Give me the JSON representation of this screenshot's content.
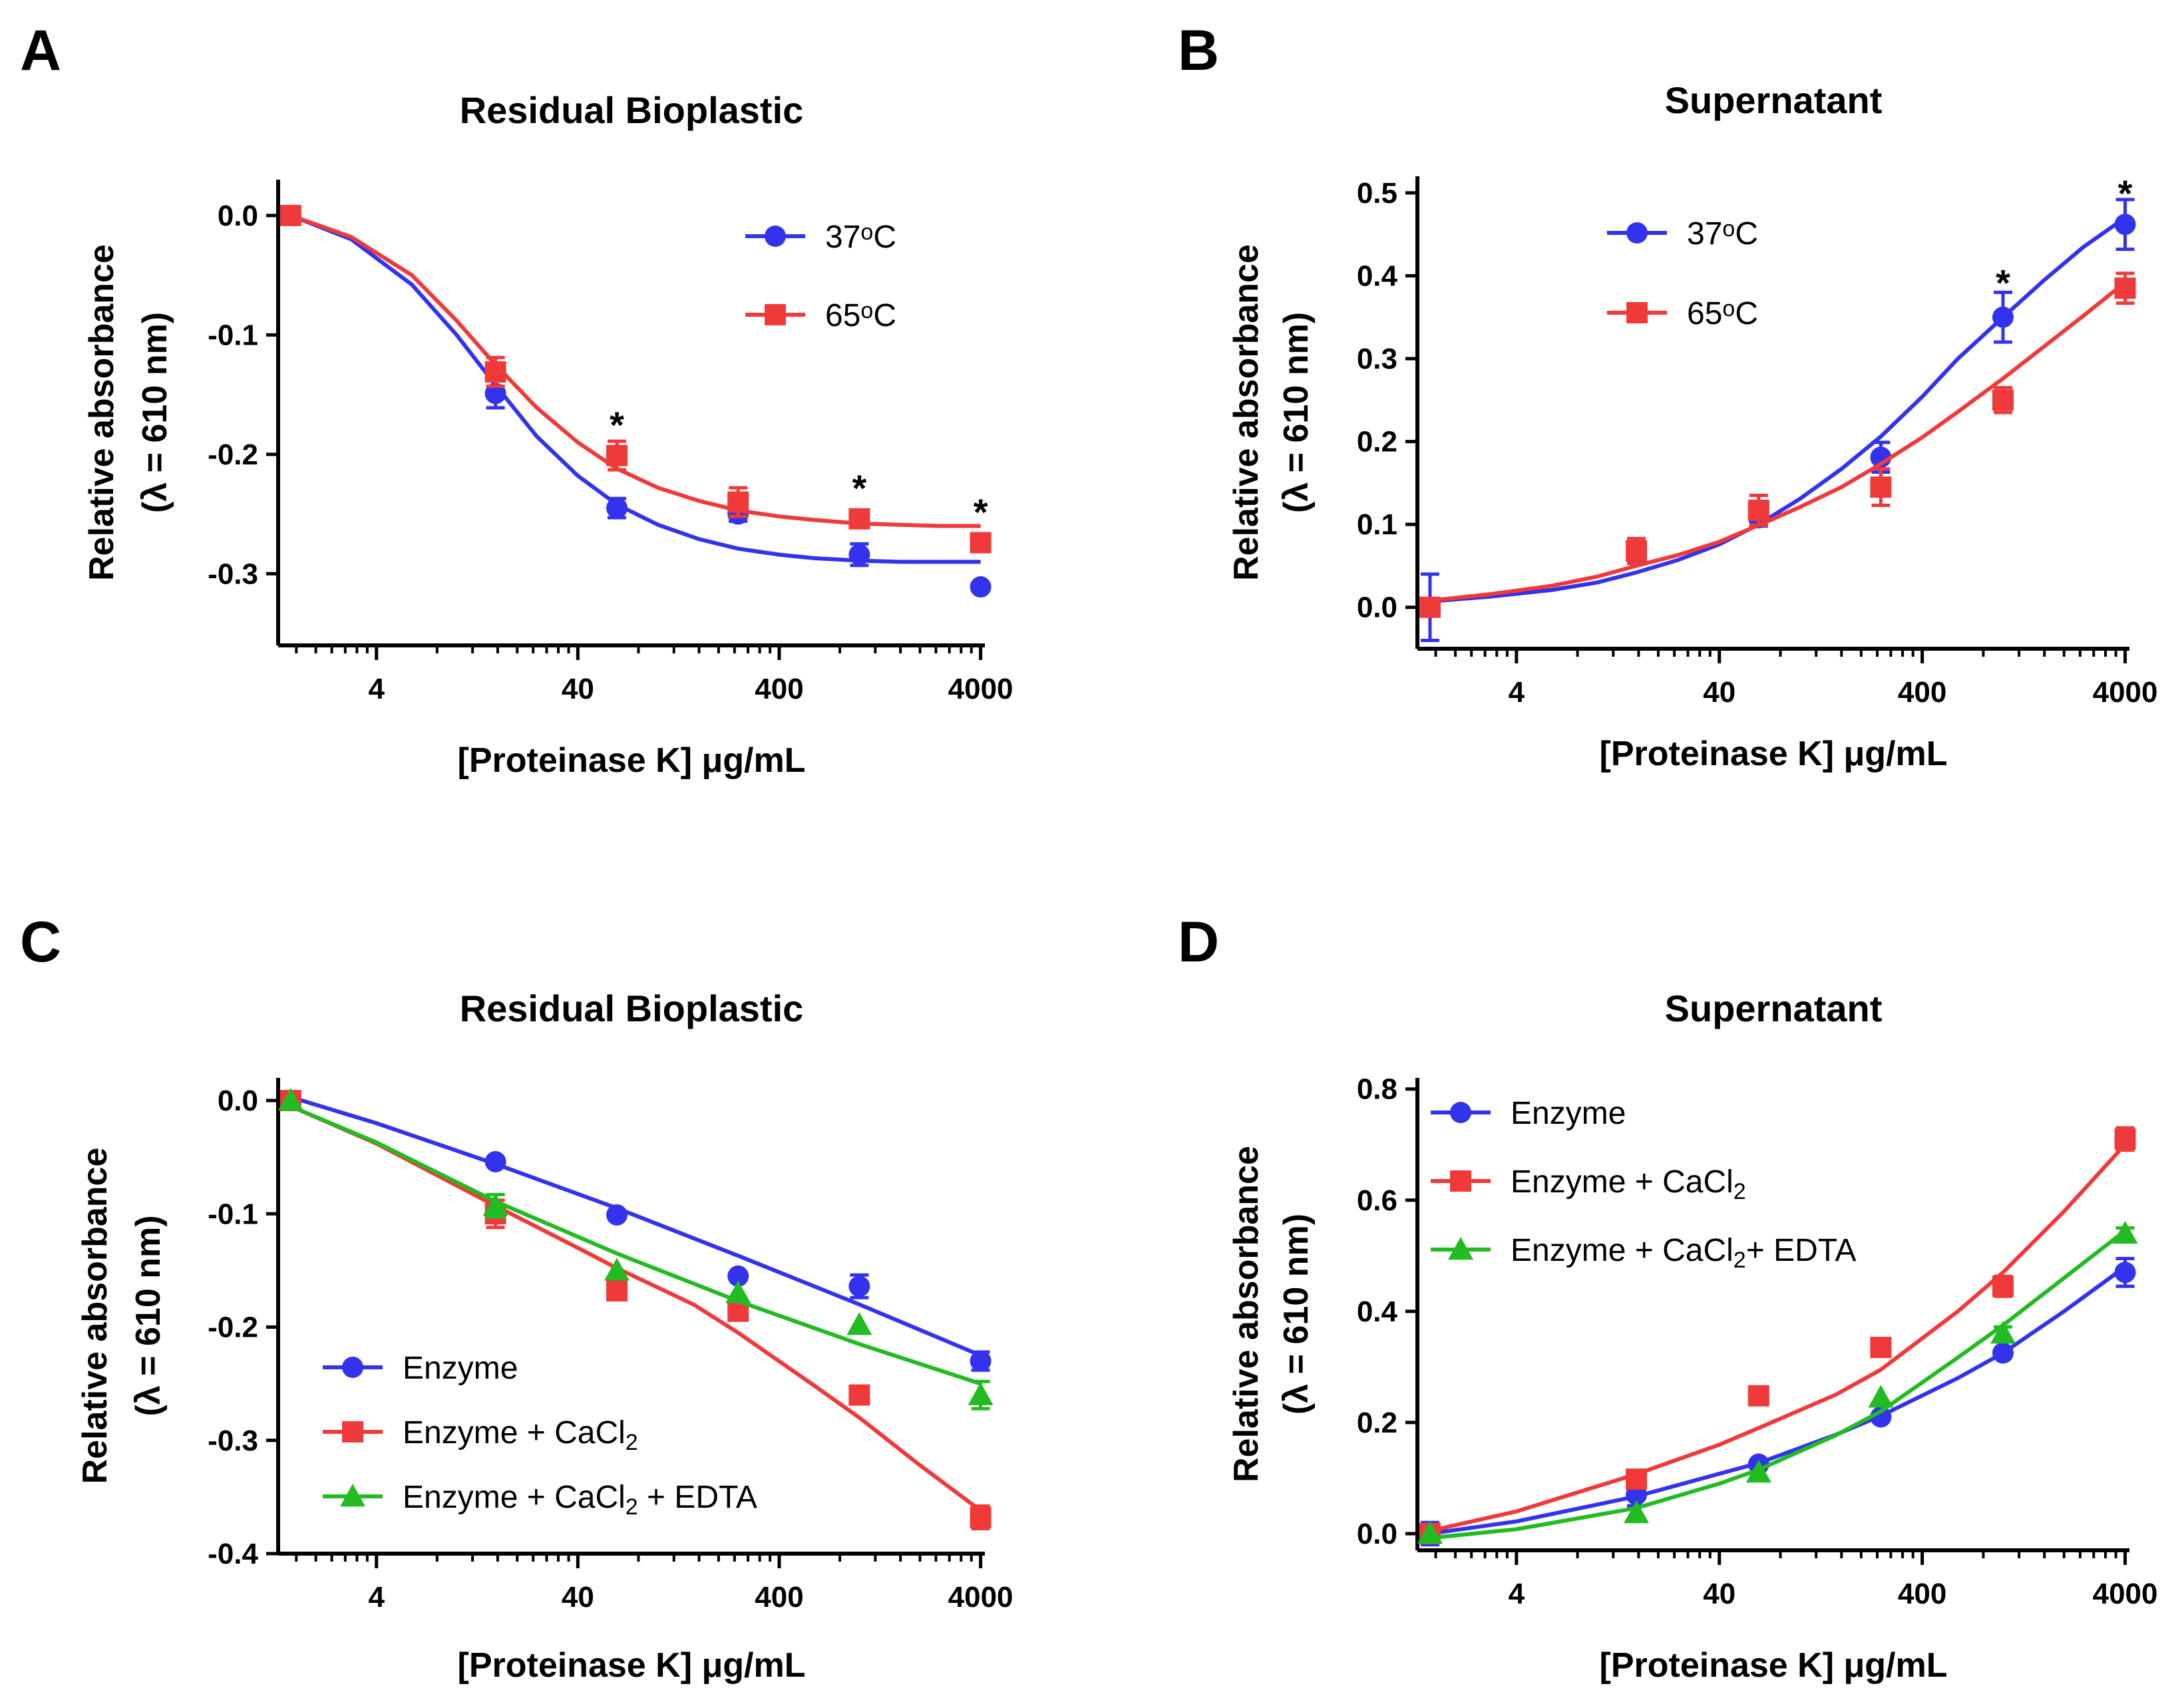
{
  "colors": {
    "blue": "#3333ee",
    "red": "#f03a3a",
    "green": "#22bb22"
  },
  "chart_data": [
    {
      "panel": "A",
      "type": "scatter",
      "title": "Residual Bioplastic",
      "xlabel": "[Proteinase K] μg/mL",
      "ylabel": [
        "Relative absorbance",
        "(λ = 610 nm)"
      ],
      "x_scale": "log10",
      "xlim": [
        1.3,
        4200
      ],
      "ylim": [
        -0.36,
        0.03
      ],
      "x_ticks": [
        4,
        40,
        400,
        4000
      ],
      "x_tick_labels": [
        "4",
        "40",
        "400",
        "4000"
      ],
      "y_ticks": [
        0.0,
        -0.1,
        -0.2,
        -0.3
      ],
      "y_tick_labels": [
        "0.0",
        "-0.1",
        "-0.2",
        "-0.3"
      ],
      "legend_position": "top-right",
      "legend_y": [
        1,
        1
      ],
      "series": [
        {
          "name": "37",
          "name_sup": "o",
          "name_tail": "C",
          "color": "blue",
          "marker": "circle",
          "x": [
            1.5,
            15.6,
            62.5,
            250,
            1000,
            4000
          ],
          "y": [
            0.0,
            -0.149,
            -0.245,
            -0.25,
            -0.284,
            -0.311
          ],
          "err": [
            0,
            0.012,
            0.008,
            0.006,
            0.009,
            0
          ],
          "fit_x": [
            1.5,
            3,
            6,
            10,
            15.6,
            25,
            40,
            62.5,
            100,
            160,
            250,
            400,
            600,
            1000,
            1600,
            2500,
            4000
          ],
          "fit_y": [
            0.0,
            -0.02,
            -0.058,
            -0.1,
            -0.142,
            -0.185,
            -0.218,
            -0.242,
            -0.259,
            -0.271,
            -0.279,
            -0.284,
            -0.287,
            -0.289,
            -0.29,
            -0.29,
            -0.29
          ]
        },
        {
          "name": "65",
          "name_sup": "o",
          "name_tail": "C",
          "color": "red",
          "marker": "square",
          "x": [
            1.5,
            15.6,
            62.5,
            250,
            1000,
            4000
          ],
          "y": [
            0.0,
            -0.131,
            -0.201,
            -0.24,
            -0.254,
            -0.274
          ],
          "err": [
            0,
            0.012,
            0.012,
            0.012,
            0.005,
            0.005
          ],
          "fit_x": [
            1.5,
            3,
            6,
            10,
            15.6,
            25,
            40,
            62.5,
            100,
            160,
            250,
            400,
            600,
            1000,
            1600,
            2500,
            4000
          ],
          "fit_y": [
            0.0,
            -0.018,
            -0.05,
            -0.088,
            -0.125,
            -0.161,
            -0.19,
            -0.212,
            -0.228,
            -0.239,
            -0.247,
            -0.252,
            -0.255,
            -0.258,
            -0.259,
            -0.26,
            -0.26
          ]
        }
      ],
      "annotations": [
        {
          "text": "*",
          "x": 62.5,
          "y": -0.175
        },
        {
          "text": "*",
          "x": 1000,
          "y": -0.228
        },
        {
          "text": "*",
          "x": 4000,
          "y": -0.248
        }
      ]
    },
    {
      "panel": "B",
      "type": "scatter",
      "title": "Supernatant",
      "xlabel": "[Proteinase K] μg/mL",
      "ylabel": [
        "Relative absorbance",
        "(λ = 610 nm)"
      ],
      "x_scale": "log10",
      "xlim": [
        1.3,
        4200
      ],
      "ylim": [
        -0.05,
        0.52
      ],
      "x_ticks": [
        4,
        40,
        400,
        4000
      ],
      "x_tick_labels": [
        "4",
        "40",
        "400",
        "4000"
      ],
      "y_ticks": [
        0.0,
        0.1,
        0.2,
        0.3,
        0.4,
        0.5
      ],
      "y_tick_labels": [
        "0.0",
        "0.1",
        "0.2",
        "0.3",
        "0.4",
        "0.5"
      ],
      "legend_position": "top-left",
      "series": [
        {
          "name": "37",
          "name_sup": "o",
          "name_tail": "C",
          "color": "blue",
          "marker": "circle",
          "x": [
            1.5,
            15.6,
            62.5,
            250,
            1000,
            4000
          ],
          "y": [
            0.0,
            0.063,
            0.108,
            0.181,
            0.35,
            0.462
          ],
          "err": [
            0.04,
            0.01,
            0.01,
            0.018,
            0.03,
            0.03
          ],
          "fit_x": [
            1.5,
            3,
            6,
            10,
            15.6,
            25,
            40,
            62.5,
            100,
            160,
            250,
            400,
            600,
            1000,
            1600,
            2500,
            4000
          ],
          "fit_y": [
            0.007,
            0.013,
            0.021,
            0.03,
            0.042,
            0.057,
            0.076,
            0.1,
            0.131,
            0.167,
            0.206,
            0.254,
            0.3,
            0.35,
            0.395,
            0.435,
            0.47
          ]
        },
        {
          "name": "65",
          "name_sup": "o",
          "name_tail": "C",
          "color": "red",
          "marker": "square",
          "x": [
            1.5,
            15.6,
            62.5,
            250,
            1000,
            4000
          ],
          "y": [
            0.0,
            0.068,
            0.117,
            0.145,
            0.25,
            0.385
          ],
          "err": [
            0,
            0.015,
            0.018,
            0.022,
            0.015,
            0.018
          ],
          "fit_x": [
            1.5,
            3,
            6,
            10,
            15.6,
            25,
            40,
            62.5,
            100,
            160,
            250,
            400,
            600,
            1000,
            1600,
            2500,
            4000
          ],
          "fit_y": [
            0.008,
            0.016,
            0.026,
            0.037,
            0.05,
            0.063,
            0.079,
            0.099,
            0.121,
            0.145,
            0.173,
            0.205,
            0.236,
            0.276,
            0.315,
            0.352,
            0.392
          ]
        }
      ],
      "annotations": [
        {
          "text": "*",
          "x": 1000,
          "y": 0.392
        },
        {
          "text": "*",
          "x": 4000,
          "y": 0.5
        }
      ]
    },
    {
      "panel": "C",
      "type": "scatter",
      "title": "Residual Bioplastic",
      "xlabel": "[Proteinase K] μg/mL",
      "ylabel": [
        "Relative absorbance",
        "(λ = 610 nm)"
      ],
      "x_scale": "log10",
      "xlim": [
        1.3,
        4200
      ],
      "ylim": [
        -0.4,
        0.02
      ],
      "x_ticks": [
        4,
        40,
        400,
        4000
      ],
      "x_tick_labels": [
        "4",
        "40",
        "400",
        "4000"
      ],
      "y_ticks": [
        0.0,
        -0.1,
        -0.2,
        -0.3,
        -0.4
      ],
      "y_tick_labels": [
        "0.0",
        "-0.1",
        "-0.2",
        "-0.3",
        "-0.4"
      ],
      "legend_position": "bottom-left",
      "series": [
        {
          "name": "Enzyme",
          "color": "blue",
          "marker": "circle",
          "x": [
            1.5,
            15.6,
            62.5,
            250,
            1000,
            4000
          ],
          "y": [
            0.0,
            -0.054,
            -0.101,
            -0.155,
            -0.164,
            -0.23
          ],
          "err": [
            0,
            0,
            0,
            0,
            0.01,
            0.008
          ],
          "fit_x": [
            1.5,
            4,
            15.6,
            62.5,
            250,
            1000,
            4000
          ],
          "fit_y": [
            0.003,
            -0.02,
            -0.056,
            -0.095,
            -0.137,
            -0.18,
            -0.225
          ]
        },
        {
          "name": "Enzyme + CaCl",
          "name_sub": "2",
          "color": "red",
          "marker": "square",
          "x": [
            1.5,
            15.6,
            62.5,
            250,
            1000,
            4000
          ],
          "y": [
            0.0,
            -0.1,
            -0.168,
            -0.186,
            -0.26,
            -0.368
          ],
          "err": [
            0,
            0.012,
            0,
            0,
            0,
            0.01
          ],
          "fit_x": [
            1.5,
            4,
            15.6,
            40,
            62.5,
            150,
            250,
            600,
            1000,
            2000,
            4000
          ],
          "fit_y": [
            -0.005,
            -0.038,
            -0.093,
            -0.13,
            -0.148,
            -0.18,
            -0.205,
            -0.252,
            -0.28,
            -0.322,
            -0.362
          ]
        },
        {
          "name": "Enzyme + CaCl",
          "name_sub": "2",
          "name_tail": " + EDTA",
          "color": "green",
          "marker": "triangle",
          "x": [
            1.5,
            15.6,
            62.5,
            250,
            1000,
            4000
          ],
          "y": [
            0.0,
            -0.093,
            -0.15,
            -0.17,
            -0.198,
            -0.26
          ],
          "err": [
            0,
            0.01,
            0,
            0,
            0,
            0.012
          ],
          "fit_x": [
            1.5,
            4,
            15.6,
            62.5,
            250,
            1000,
            4000
          ],
          "fit_y": [
            -0.005,
            -0.037,
            -0.089,
            -0.135,
            -0.177,
            -0.215,
            -0.25
          ]
        }
      ]
    },
    {
      "panel": "D",
      "type": "scatter",
      "title": "Supernatant",
      "xlabel": "[Proteinase K] μg/mL",
      "ylabel": [
        "Relative absorbance",
        "(λ = 610 nm)"
      ],
      "x_scale": "log10",
      "xlim": [
        1.3,
        4200
      ],
      "ylim": [
        -0.03,
        0.82
      ],
      "x_ticks": [
        4,
        40,
        400,
        4000
      ],
      "x_tick_labels": [
        "4",
        "40",
        "400",
        "4000"
      ],
      "y_ticks": [
        0.0,
        0.2,
        0.4,
        0.6,
        0.8
      ],
      "y_tick_labels": [
        "0.0",
        "0.2",
        "0.4",
        "0.6",
        "0.8"
      ],
      "legend_position": "top-left",
      "series": [
        {
          "name": "Enzyme",
          "color": "blue",
          "marker": "circle",
          "x": [
            1.5,
            15.6,
            62.5,
            250,
            1000,
            4000
          ],
          "y": [
            0.0,
            0.07,
            0.125,
            0.21,
            0.325,
            0.47
          ],
          "err": [
            0.02,
            0.02,
            0,
            0,
            0,
            0.025
          ],
          "fit_x": [
            1.5,
            4,
            15.6,
            62.5,
            150,
            250,
            600,
            1000,
            2000,
            4000
          ],
          "fit_y": [
            0.0,
            0.022,
            0.067,
            0.127,
            0.178,
            0.212,
            0.28,
            0.325,
            0.4,
            0.48
          ]
        },
        {
          "name": "Enzyme + CaCl",
          "name_sub": "2",
          "color": "red",
          "marker": "square",
          "x": [
            1.5,
            15.6,
            62.5,
            250,
            1000,
            4000
          ],
          "y": [
            0.0,
            0.098,
            0.248,
            0.335,
            0.445,
            0.71
          ],
          "err": [
            0,
            0.012,
            0,
            0,
            0.018,
            0.02
          ],
          "fit_x": [
            1.5,
            4,
            15.6,
            40,
            62.5,
            150,
            250,
            600,
            1000,
            2000,
            4000
          ],
          "fit_y": [
            0.005,
            0.04,
            0.107,
            0.16,
            0.19,
            0.25,
            0.295,
            0.4,
            0.47,
            0.58,
            0.7
          ]
        },
        {
          "name": "Enzyme + CaCl",
          "name_sub": "2",
          "name_tail": "+ EDTA",
          "color": "green",
          "marker": "triangle",
          "x": [
            1.5,
            15.6,
            62.5,
            250,
            1000,
            4000
          ],
          "y": [
            0.0,
            0.037,
            0.11,
            0.245,
            0.36,
            0.54
          ],
          "err": [
            0,
            0,
            0,
            0,
            0.012,
            0.01
          ],
          "fit_x": [
            1.5,
            4,
            15.6,
            40,
            62.5,
            150,
            250,
            600,
            1000,
            2000,
            4000
          ],
          "fit_y": [
            -0.008,
            0.008,
            0.046,
            0.09,
            0.115,
            0.177,
            0.22,
            0.317,
            0.375,
            0.46,
            0.545
          ]
        }
      ]
    }
  ]
}
